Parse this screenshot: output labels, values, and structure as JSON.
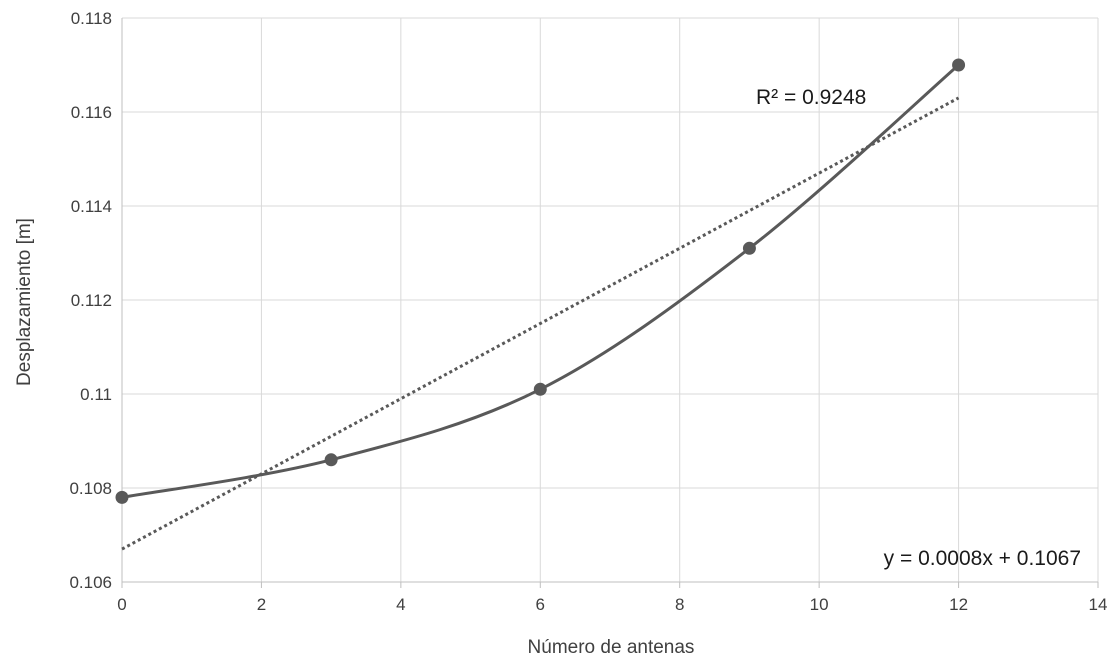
{
  "chart_data": {
    "type": "scatter",
    "title": "",
    "xlabel": "Número de antenas",
    "ylabel": "Desplazamiento [m]",
    "xlim": [
      0,
      14
    ],
    "ylim": [
      0.106,
      0.118
    ],
    "x_ticks": [
      0,
      2,
      4,
      6,
      8,
      10,
      12,
      14
    ],
    "x_tick_labels": [
      "0",
      "2",
      "4",
      "6",
      "8",
      "10",
      "12",
      "14"
    ],
    "y_ticks": [
      0.106,
      0.108,
      0.11,
      0.112,
      0.114,
      0.116,
      0.118
    ],
    "y_tick_labels": [
      "0.106",
      "0.108",
      "0.11",
      "0.112",
      "0.114",
      "0.116",
      "0.118"
    ],
    "grid": true,
    "series": [
      {
        "x": [
          0,
          3,
          6,
          9,
          12
        ],
        "y": [
          0.1078,
          0.1086,
          0.1101,
          0.1131,
          0.117
        ],
        "color": "#595959",
        "line": "smooth",
        "markers": true
      }
    ],
    "trendline": {
      "type": "linear",
      "slope": 0.0008,
      "intercept": 0.1067,
      "x_range": [
        0,
        12
      ],
      "color": "#595959",
      "style": "dotted",
      "equation_label": "y = 0.0008x + 0.1067",
      "r2_label": "R² = 0.9248"
    }
  }
}
